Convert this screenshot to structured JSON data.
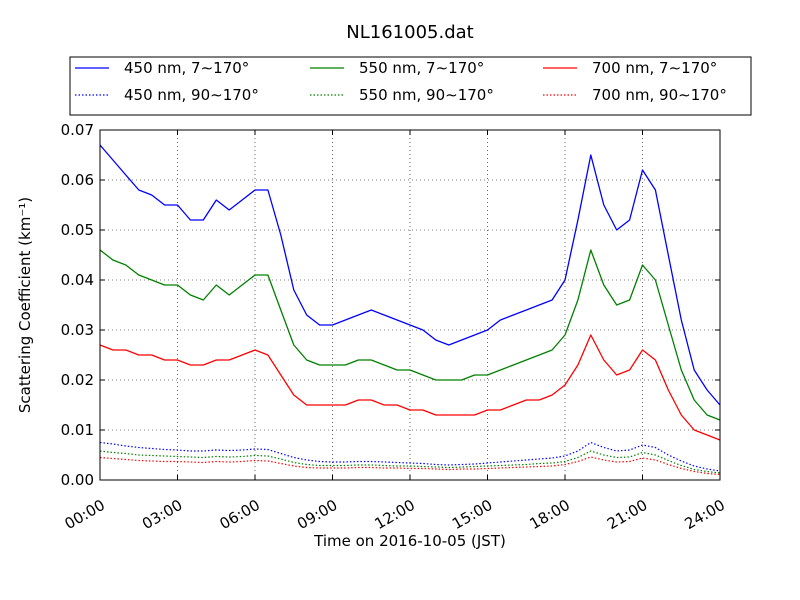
{
  "chart_data": {
    "type": "line",
    "title": "NL161005.dat",
    "xlabel": "Time on 2016-10-05 (JST)",
    "ylabel": "Scattering Coefficient (km⁻¹)",
    "xlim": [
      "00:00",
      "24:00"
    ],
    "ylim": [
      0,
      0.07
    ],
    "x_ticks": [
      "00:00",
      "03:00",
      "06:00",
      "09:00",
      "12:00",
      "15:00",
      "18:00",
      "21:00",
      "24:00"
    ],
    "y_ticks": [
      "0.00",
      "0.01",
      "0.02",
      "0.03",
      "0.04",
      "0.05",
      "0.06",
      "0.07"
    ],
    "grid": true,
    "legend_placement": "top, above plot, 3 columns",
    "x": [
      "00:00",
      "00:30",
      "01:00",
      "01:30",
      "02:00",
      "02:30",
      "03:00",
      "03:30",
      "04:00",
      "04:30",
      "05:00",
      "05:30",
      "06:00",
      "06:30",
      "07:00",
      "07:30",
      "08:00",
      "08:30",
      "09:00",
      "09:30",
      "10:00",
      "10:30",
      "11:00",
      "11:30",
      "12:00",
      "12:30",
      "13:00",
      "13:30",
      "14:00",
      "14:30",
      "15:00",
      "15:30",
      "16:00",
      "16:30",
      "17:00",
      "17:30",
      "18:00",
      "18:30",
      "19:00",
      "19:30",
      "20:00",
      "20:30",
      "21:00",
      "21:30",
      "22:00",
      "22:30",
      "23:00",
      "23:30",
      "24:00"
    ],
    "series": [
      {
        "name": "450 nm, 7∼170°",
        "color": "#0000ff",
        "style": "solid",
        "values": [
          0.067,
          0.064,
          0.061,
          0.058,
          0.057,
          0.055,
          0.055,
          0.052,
          0.052,
          0.056,
          0.054,
          0.056,
          0.058,
          0.058,
          0.049,
          0.038,
          0.033,
          0.031,
          0.031,
          0.032,
          0.033,
          0.034,
          0.033,
          0.032,
          0.031,
          0.03,
          0.028,
          0.027,
          0.028,
          0.029,
          0.03,
          0.032,
          0.033,
          0.034,
          0.035,
          0.036,
          0.04,
          0.052,
          0.065,
          0.055,
          0.05,
          0.052,
          0.062,
          0.058,
          0.045,
          0.032,
          0.022,
          0.018,
          0.015
        ]
      },
      {
        "name": "450 nm, 90∼170°",
        "color": "#0000ff",
        "style": "dotted",
        "values": [
          0.0075,
          0.0072,
          0.0068,
          0.0065,
          0.0063,
          0.0061,
          0.006,
          0.0058,
          0.0058,
          0.006,
          0.0059,
          0.006,
          0.0062,
          0.0061,
          0.0053,
          0.0045,
          0.004,
          0.0037,
          0.0036,
          0.0036,
          0.0037,
          0.0037,
          0.0036,
          0.0035,
          0.0034,
          0.0033,
          0.0031,
          0.003,
          0.0031,
          0.0032,
          0.0034,
          0.0036,
          0.0038,
          0.004,
          0.0042,
          0.0044,
          0.0048,
          0.0058,
          0.0075,
          0.0065,
          0.0058,
          0.006,
          0.007,
          0.0065,
          0.005,
          0.0038,
          0.0028,
          0.0022,
          0.0018
        ]
      },
      {
        "name": "550 nm, 7∼170°",
        "color": "#008000",
        "style": "solid",
        "values": [
          0.046,
          0.044,
          0.043,
          0.041,
          0.04,
          0.039,
          0.039,
          0.037,
          0.036,
          0.039,
          0.037,
          0.039,
          0.041,
          0.041,
          0.034,
          0.027,
          0.024,
          0.023,
          0.023,
          0.023,
          0.024,
          0.024,
          0.023,
          0.022,
          0.022,
          0.021,
          0.02,
          0.02,
          0.02,
          0.021,
          0.021,
          0.022,
          0.023,
          0.024,
          0.025,
          0.026,
          0.029,
          0.036,
          0.046,
          0.039,
          0.035,
          0.036,
          0.043,
          0.04,
          0.031,
          0.022,
          0.016,
          0.013,
          0.012
        ]
      },
      {
        "name": "550 nm, 90∼170°",
        "color": "#008000",
        "style": "dotted",
        "values": [
          0.0058,
          0.0055,
          0.0053,
          0.005,
          0.0049,
          0.0048,
          0.0047,
          0.0046,
          0.0045,
          0.0047,
          0.0046,
          0.0047,
          0.0049,
          0.0048,
          0.0042,
          0.0035,
          0.0031,
          0.0029,
          0.0029,
          0.0029,
          0.003,
          0.003,
          0.0029,
          0.0028,
          0.0028,
          0.0027,
          0.0026,
          0.0025,
          0.0026,
          0.0027,
          0.0028,
          0.0029,
          0.003,
          0.0031,
          0.0033,
          0.0034,
          0.0037,
          0.0045,
          0.0058,
          0.005,
          0.0045,
          0.0046,
          0.0055,
          0.005,
          0.0039,
          0.0029,
          0.0021,
          0.0017,
          0.0014
        ]
      },
      {
        "name": "700 nm, 7∼170°",
        "color": "#ff0000",
        "style": "solid",
        "values": [
          0.027,
          0.026,
          0.026,
          0.025,
          0.025,
          0.024,
          0.024,
          0.023,
          0.023,
          0.024,
          0.024,
          0.025,
          0.026,
          0.025,
          0.021,
          0.017,
          0.015,
          0.015,
          0.015,
          0.015,
          0.016,
          0.016,
          0.015,
          0.015,
          0.014,
          0.014,
          0.013,
          0.013,
          0.013,
          0.013,
          0.014,
          0.014,
          0.015,
          0.016,
          0.016,
          0.017,
          0.019,
          0.023,
          0.029,
          0.024,
          0.021,
          0.022,
          0.026,
          0.024,
          0.018,
          0.013,
          0.01,
          0.009,
          0.008
        ]
      },
      {
        "name": "700 nm, 90∼170°",
        "color": "#ff0000",
        "style": "dotted",
        "values": [
          0.0045,
          0.0043,
          0.0041,
          0.0039,
          0.0038,
          0.0037,
          0.0037,
          0.0036,
          0.0035,
          0.0037,
          0.0036,
          0.0037,
          0.0039,
          0.0038,
          0.0033,
          0.0028,
          0.0025,
          0.0024,
          0.0024,
          0.0024,
          0.0025,
          0.0025,
          0.0024,
          0.0024,
          0.0023,
          0.0023,
          0.0022,
          0.0021,
          0.0022,
          0.0022,
          0.0023,
          0.0024,
          0.0025,
          0.0026,
          0.0027,
          0.0028,
          0.0031,
          0.0037,
          0.0046,
          0.004,
          0.0036,
          0.0037,
          0.0044,
          0.004,
          0.0031,
          0.0023,
          0.0017,
          0.0013,
          0.0011
        ]
      }
    ]
  }
}
